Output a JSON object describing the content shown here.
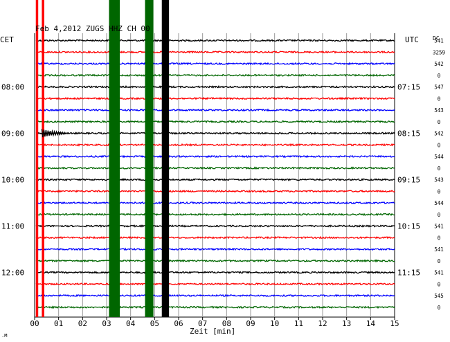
{
  "chart_data": {
    "type": "line",
    "title": "Feb 4,2012  ZUGS HHZ CH 00",
    "xlabel": "Zeit [min]",
    "left_axis_label": "CET",
    "right_axis_label": "UTC",
    "dc_label": "DC",
    "xlim": [
      0,
      15
    ],
    "x_ticks": [
      "00",
      "01",
      "02",
      "03",
      "04",
      "05",
      "06",
      "07",
      "08",
      "09",
      "10",
      "11",
      "12",
      "13",
      "14",
      "15"
    ],
    "trace_colors": [
      "#000000",
      "#ff0000",
      "#0000ff",
      "#006600"
    ],
    "left_time_labels": [
      {
        "trace": 4,
        "label": "08:00"
      },
      {
        "trace": 8,
        "label": "09:00"
      },
      {
        "trace": 12,
        "label": "10:00"
      },
      {
        "trace": 16,
        "label": "11:00"
      },
      {
        "trace": 20,
        "label": "12:00"
      }
    ],
    "right_time_labels": [
      {
        "trace": 4,
        "label": "07:15"
      },
      {
        "trace": 8,
        "label": "08:15"
      },
      {
        "trace": 12,
        "label": "09:15"
      },
      {
        "trace": 16,
        "label": "10:15"
      },
      {
        "trace": 20,
        "label": "11:15"
      }
    ],
    "dc_values": [
      "541",
      "3259",
      "542",
      "0",
      "547",
      "0",
      "543",
      "0",
      "542",
      "0",
      "544",
      "0",
      "543",
      "0",
      "544",
      "0",
      "541",
      "0",
      "541",
      "0",
      "541",
      "0",
      "545",
      "0"
    ],
    "events": [
      {
        "start_min": 0.05,
        "end_min": 0.15,
        "color": "#ff0000",
        "row_start": 0,
        "row_end": 23
      },
      {
        "start_min": 0.3,
        "end_min": 0.4,
        "color": "#ff0000",
        "row_start": 0,
        "row_end": 23
      },
      {
        "start_min": 3.1,
        "end_min": 3.55,
        "color": "#006600",
        "row_start": 0,
        "row_end": 23
      },
      {
        "start_min": 4.6,
        "end_min": 4.95,
        "color": "#006600",
        "row_start": 0,
        "row_end": 23
      },
      {
        "start_min": 5.3,
        "end_min": 5.6,
        "color": "#000000",
        "row_start": 0,
        "row_end": 23
      },
      {
        "start_min": 0.3,
        "end_min": 1.3,
        "color": "#000000",
        "row_start": 8,
        "row_end": 8
      }
    ],
    "footer_mark": ".M"
  }
}
